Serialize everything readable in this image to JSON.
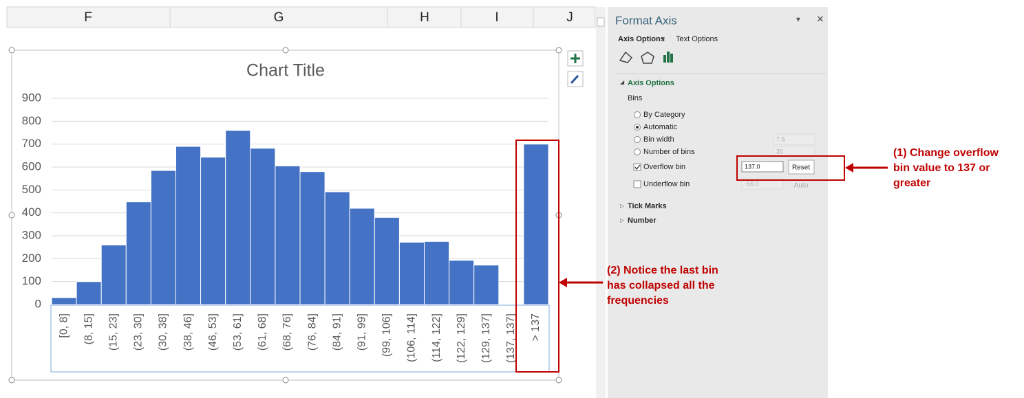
{
  "columns": [
    "F",
    "G",
    "H",
    "I",
    "J"
  ],
  "chart_data": {
    "type": "bar",
    "title": "Chart Title",
    "categories": [
      "[0, 8]",
      "(8, 15]",
      "(15, 23]",
      "(23, 30]",
      "(30, 38]",
      "(38, 46]",
      "(46, 53]",
      "(53, 61]",
      "(61, 68]",
      "(68, 76]",
      "(76, 84]",
      "(84, 91]",
      "(91, 99]",
      "(99, 106]",
      "(106, 114]",
      "(114, 122]",
      "(122, 129]",
      "(129, 137]",
      "(137, 137]",
      "> 137"
    ],
    "values": [
      30,
      100,
      260,
      448,
      585,
      690,
      643,
      760,
      682,
      605,
      580,
      492,
      420,
      380,
      272,
      275,
      193,
      172,
      3,
      700
    ],
    "color": "#4472c4",
    "ylim": [
      0,
      900
    ],
    "yticks": [
      0,
      100,
      200,
      300,
      400,
      500,
      600,
      700,
      800,
      900
    ],
    "grid": true
  },
  "panel": {
    "title": "Format Axis",
    "tabs": [
      "Axis Options",
      "Text Options"
    ],
    "section": "Axis Options",
    "group": "Bins",
    "options": [
      {
        "label": "By Category"
      },
      {
        "label": "Automatic"
      },
      {
        "label": "Bin width",
        "input": "7.6"
      },
      {
        "label": "Number of bins",
        "input": "20"
      },
      {
        "label": "Overflow bin",
        "input": "137.0",
        "button": "Reset"
      },
      {
        "label": "Underflow bin",
        "input": "-56.0",
        "button": "Auto"
      }
    ],
    "collapsed": [
      "Tick Marks",
      "Number"
    ]
  },
  "annotations": [
    {
      "lines": [
        "(1) Change overflow",
        "bin value to 137 or",
        "greater"
      ]
    },
    {
      "lines": [
        "(2) Notice the last bin",
        "has collapsed all the",
        "frequencies"
      ]
    }
  ]
}
